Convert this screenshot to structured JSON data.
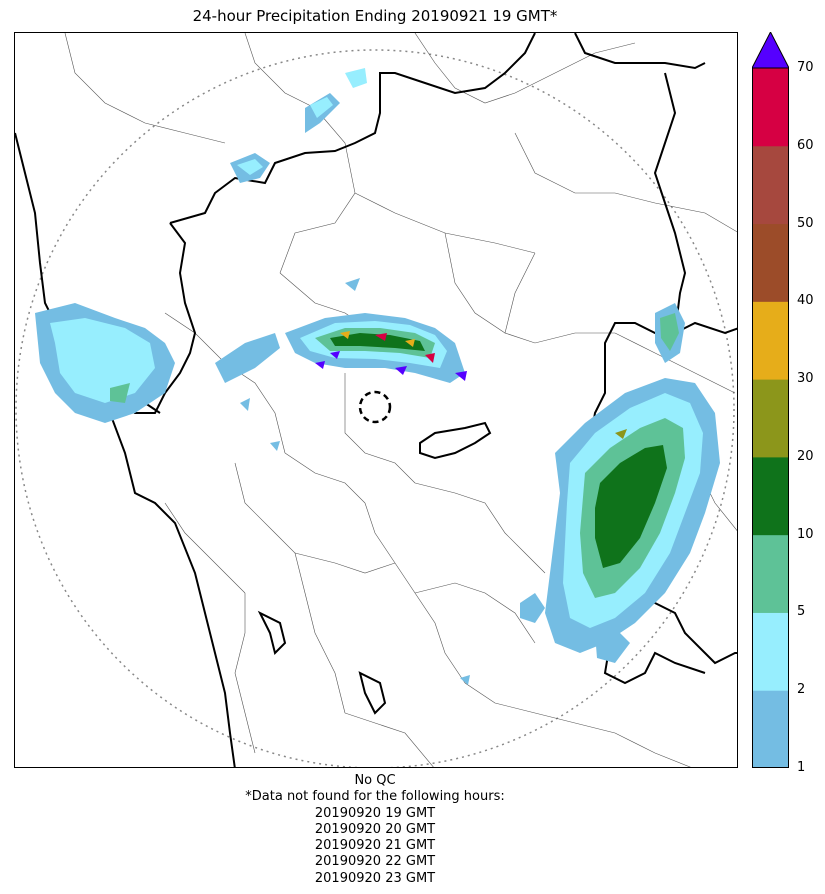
{
  "title": "24-hour Precipitation Ending 20190921 19 GMT*",
  "colorbar": {
    "ticks": [
      "1",
      "2",
      "5",
      "10",
      "20",
      "30",
      "40",
      "50",
      "60",
      "70"
    ],
    "colors": [
      "#74bde3",
      "#97eefe",
      "#5ec297",
      "#0f731b",
      "#8c961b",
      "#e6ad1a",
      "#9c4c29",
      "#a6483e",
      "#d60043"
    ],
    "over_color": "#5500ff"
  },
  "footnote": {
    "qc": "No QC",
    "missing_header": "*Data not found for the following hours:",
    "missing_hours": [
      "20190920 19 GMT",
      "20190920 20 GMT",
      "20190920 21 GMT",
      "20190920 22 GMT",
      "20190920 23 GMT"
    ]
  }
}
